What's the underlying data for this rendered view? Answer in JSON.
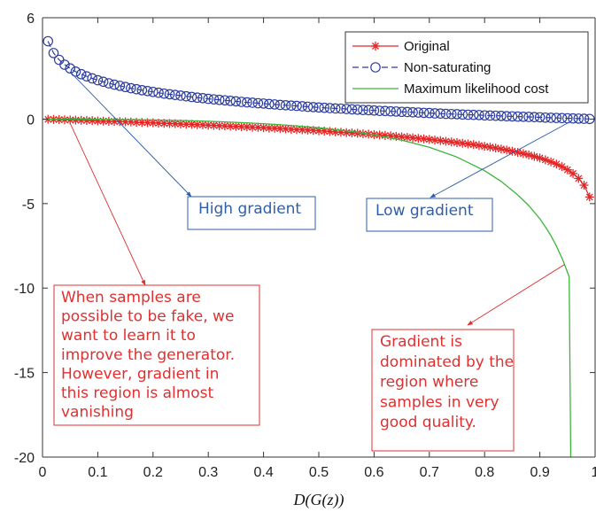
{
  "chart_data": {
    "type": "line",
    "xlabel": "D(G(z))",
    "ylabel": "",
    "xlim": [
      0,
      1
    ],
    "ylim": [
      -20,
      6
    ],
    "x_ticks": [
      "0",
      "0.1",
      "0.2",
      "0.3",
      "0.4",
      "0.5",
      "0.6",
      "0.7",
      "0.8",
      "0.9",
      "1"
    ],
    "y_ticks": [
      "6",
      "0",
      "-5",
      "-10",
      "-15",
      "-20"
    ],
    "grid": false,
    "legend_position": "top-right",
    "series": [
      {
        "name": "Original",
        "color": "#e32626",
        "marker": "asterisk",
        "x": [
          0.01,
          0.02,
          0.03,
          0.04,
          0.05,
          0.06,
          0.07,
          0.08,
          0.09,
          0.1,
          0.11,
          0.12,
          0.13,
          0.14,
          0.15,
          0.16,
          0.17,
          0.18,
          0.19,
          0.2,
          0.21,
          0.22,
          0.23,
          0.24,
          0.25,
          0.26,
          0.27,
          0.28,
          0.29,
          0.3,
          0.31,
          0.32,
          0.33,
          0.34,
          0.35,
          0.36,
          0.37,
          0.38,
          0.39,
          0.4,
          0.41,
          0.42,
          0.43,
          0.44,
          0.45,
          0.46,
          0.47,
          0.48,
          0.49,
          0.5,
          0.51,
          0.52,
          0.53,
          0.54,
          0.55,
          0.56,
          0.57,
          0.58,
          0.59,
          0.6,
          0.61,
          0.62,
          0.63,
          0.64,
          0.65,
          0.66,
          0.67,
          0.68,
          0.69,
          0.7,
          0.71,
          0.72,
          0.73,
          0.74,
          0.75,
          0.76,
          0.77,
          0.78,
          0.79,
          0.8,
          0.81,
          0.82,
          0.83,
          0.84,
          0.85,
          0.86,
          0.87,
          0.88,
          0.89,
          0.9,
          0.91,
          0.92,
          0.93,
          0.94,
          0.95,
          0.96,
          0.97,
          0.98,
          0.99
        ],
        "y": [
          -0.01,
          -0.02,
          -0.03,
          -0.04,
          -0.05,
          -0.06,
          -0.07,
          -0.08,
          -0.09,
          -0.11,
          -0.12,
          -0.13,
          -0.14,
          -0.15,
          -0.16,
          -0.17,
          -0.19,
          -0.2,
          -0.21,
          -0.22,
          -0.24,
          -0.25,
          -0.26,
          -0.27,
          -0.29,
          -0.3,
          -0.31,
          -0.33,
          -0.34,
          -0.36,
          -0.37,
          -0.39,
          -0.4,
          -0.42,
          -0.43,
          -0.45,
          -0.46,
          -0.48,
          -0.49,
          -0.51,
          -0.53,
          -0.54,
          -0.56,
          -0.58,
          -0.6,
          -0.62,
          -0.63,
          -0.65,
          -0.67,
          -0.69,
          -0.71,
          -0.73,
          -0.76,
          -0.78,
          -0.8,
          -0.82,
          -0.84,
          -0.87,
          -0.89,
          -0.92,
          -0.94,
          -0.97,
          -0.99,
          -1.02,
          -1.05,
          -1.08,
          -1.11,
          -1.14,
          -1.17,
          -1.2,
          -1.24,
          -1.27,
          -1.31,
          -1.35,
          -1.39,
          -1.43,
          -1.47,
          -1.51,
          -1.56,
          -1.61,
          -1.66,
          -1.71,
          -1.77,
          -1.83,
          -1.9,
          -1.97,
          -2.04,
          -2.12,
          -2.21,
          -2.3,
          -2.41,
          -2.53,
          -2.66,
          -2.81,
          -3.0,
          -3.22,
          -3.51,
          -3.91,
          -4.61
        ]
      },
      {
        "name": "Non-saturating",
        "color": "#2e3f9e",
        "marker": "circle",
        "line_style": "dashed",
        "x": [
          0.01,
          0.02,
          0.03,
          0.04,
          0.05,
          0.06,
          0.07,
          0.08,
          0.09,
          0.1,
          0.11,
          0.12,
          0.13,
          0.14,
          0.15,
          0.16,
          0.17,
          0.18,
          0.19,
          0.2,
          0.21,
          0.22,
          0.23,
          0.24,
          0.25,
          0.26,
          0.27,
          0.28,
          0.29,
          0.3,
          0.31,
          0.32,
          0.33,
          0.34,
          0.35,
          0.36,
          0.37,
          0.38,
          0.39,
          0.4,
          0.41,
          0.42,
          0.43,
          0.44,
          0.45,
          0.46,
          0.47,
          0.48,
          0.49,
          0.5,
          0.51,
          0.52,
          0.53,
          0.54,
          0.55,
          0.56,
          0.57,
          0.58,
          0.59,
          0.6,
          0.61,
          0.62,
          0.63,
          0.64,
          0.65,
          0.66,
          0.67,
          0.68,
          0.69,
          0.7,
          0.71,
          0.72,
          0.73,
          0.74,
          0.75,
          0.76,
          0.77,
          0.78,
          0.79,
          0.8,
          0.81,
          0.82,
          0.83,
          0.84,
          0.85,
          0.86,
          0.87,
          0.88,
          0.89,
          0.9,
          0.91,
          0.92,
          0.93,
          0.94,
          0.95,
          0.96,
          0.97,
          0.98,
          0.99
        ],
        "y": [
          4.61,
          3.91,
          3.51,
          3.22,
          3.0,
          2.81,
          2.66,
          2.53,
          2.41,
          2.3,
          2.21,
          2.12,
          2.04,
          1.97,
          1.9,
          1.83,
          1.77,
          1.71,
          1.66,
          1.61,
          1.56,
          1.51,
          1.47,
          1.43,
          1.39,
          1.35,
          1.31,
          1.27,
          1.24,
          1.2,
          1.17,
          1.14,
          1.11,
          1.08,
          1.05,
          1.02,
          0.99,
          0.97,
          0.94,
          0.92,
          0.89,
          0.87,
          0.84,
          0.82,
          0.8,
          0.78,
          0.76,
          0.73,
          0.71,
          0.69,
          0.67,
          0.65,
          0.63,
          0.62,
          0.6,
          0.58,
          0.56,
          0.54,
          0.53,
          0.51,
          0.49,
          0.48,
          0.46,
          0.45,
          0.43,
          0.42,
          0.4,
          0.39,
          0.37,
          0.36,
          0.34,
          0.33,
          0.31,
          0.3,
          0.29,
          0.27,
          0.26,
          0.25,
          0.24,
          0.22,
          0.21,
          0.2,
          0.19,
          0.17,
          0.16,
          0.15,
          0.14,
          0.13,
          0.12,
          0.11,
          0.09,
          0.08,
          0.07,
          0.06,
          0.05,
          0.04,
          0.03,
          0.02,
          0.01
        ]
      },
      {
        "name": "Maximum likelihood cost",
        "color": "#3cb53c",
        "marker": "none",
        "x": [
          0.0,
          0.05,
          0.1,
          0.15,
          0.2,
          0.25,
          0.3,
          0.35,
          0.4,
          0.45,
          0.5,
          0.55,
          0.6,
          0.65,
          0.7,
          0.75,
          0.8,
          0.83,
          0.86,
          0.88,
          0.9,
          0.91,
          0.92,
          0.93,
          0.94,
          0.945,
          0.95,
          0.953
        ],
        "y": [
          0.0,
          -0.003,
          -0.011,
          -0.027,
          -0.05,
          -0.083,
          -0.129,
          -0.189,
          -0.27,
          -0.375,
          -0.51,
          -0.692,
          -0.931,
          -1.246,
          -1.668,
          -2.245,
          -3.055,
          -3.688,
          -4.485,
          -5.12,
          -5.901,
          -6.371,
          -6.903,
          -7.515,
          -8.227,
          -8.633,
          -9.065,
          -9.33
        ]
      }
    ],
    "annotations": [
      {
        "lines": [
          "High gradient"
        ],
        "color": "#2f5fa8"
      },
      {
        "lines": [
          "Low gradient"
        ],
        "color": "#2f5fa8"
      },
      {
        "lines": [
          "When samples are",
          "possible to be fake, we",
          "want to learn it to",
          "improve the generator.",
          "However, gradient in",
          "this region is almost",
          "vanishing"
        ],
        "color": "#e03030"
      },
      {
        "lines": [
          "Gradient is",
          "dominated by the",
          "region where",
          "samples in very",
          "good quality."
        ],
        "color": "#e03030"
      }
    ]
  }
}
